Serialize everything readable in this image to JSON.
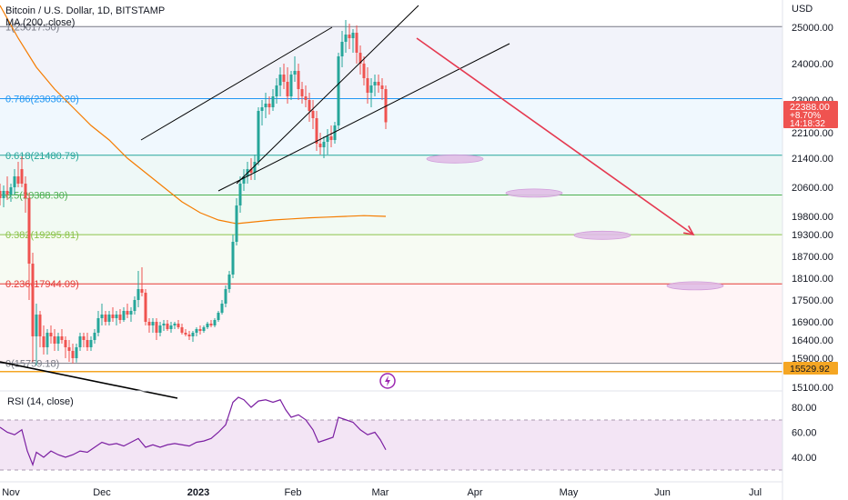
{
  "header": {
    "symbol": "Bitcoin / U.S. Dollar, 1D, BITSTAMP",
    "ma": "MA (200, close)"
  },
  "rsi_label": "RSI (14, close)",
  "colors": {
    "up": "#26a69a",
    "down": "#ef5350",
    "ma": "#f57c00",
    "rsi": "#7b1fa2",
    "channel": "#000000",
    "arrow": "#e53950",
    "support": "#f5a623",
    "live_badge": "#ef5350",
    "support_badge": "#f5a623"
  },
  "price_axis": {
    "currency": "USD",
    "ticks": [
      "25000.00",
      "24000.00",
      "23000.00",
      "22100.00",
      "21400.00",
      "20600.00",
      "19800.00",
      "19300.00",
      "18700.00",
      "18100.00",
      "17500.00",
      "16900.00",
      "16400.00",
      "15900.00",
      "15100.00"
    ],
    "live_price": "22388.00",
    "live_change": "+8.70%",
    "live_countdown": "14:18:32",
    "support_price": "15529.92"
  },
  "rsi_axis": {
    "ticks": [
      "80.00",
      "60.00",
      "40.00"
    ]
  },
  "time_axis": {
    "ticks": [
      "Nov",
      "Dec",
      "2023",
      "Feb",
      "Mar",
      "Apr",
      "May",
      "Jun",
      "Jul"
    ]
  },
  "fib_levels": [
    {
      "label": "1(25017.50)",
      "color": "#787b86"
    },
    {
      "label": "0.786(23036.20)",
      "color": "#2196f3"
    },
    {
      "label": "0.618(21480.79)",
      "color": "#26a69a"
    },
    {
      "label": "0.5(20388.30)",
      "color": "#4caf50"
    },
    {
      "label": "0.382(19295.81)",
      "color": "#8bc34a"
    },
    {
      "label": "0.236(17944.09)",
      "color": "#e53935"
    },
    {
      "label": "0(15759.18)",
      "color": "#787b86"
    }
  ],
  "chart_data": {
    "type": "candlestick",
    "title": "Bitcoin / U.S. Dollar, 1D, BITSTAMP",
    "y_unit": "USD",
    "ylim": [
      15000,
      25600
    ],
    "candles": [
      {
        "t": 0,
        "o": 20500,
        "h": 20700,
        "l": 20100,
        "c": 20300
      },
      {
        "t": 4,
        "o": 20300,
        "h": 20650,
        "l": 20050,
        "c": 20500
      },
      {
        "t": 8,
        "o": 20500,
        "h": 20900,
        "l": 20250,
        "c": 20400
      },
      {
        "t": 12,
        "o": 20400,
        "h": 20700,
        "l": 20200,
        "c": 20600
      },
      {
        "t": 16,
        "o": 20600,
        "h": 21100,
        "l": 20400,
        "c": 20900
      },
      {
        "t": 20,
        "o": 20900,
        "h": 21300,
        "l": 20600,
        "c": 20700
      },
      {
        "t": 24,
        "o": 21100,
        "h": 21450,
        "l": 20600,
        "c": 20700
      },
      {
        "t": 28,
        "o": 20700,
        "h": 20900,
        "l": 19900,
        "c": 20300
      },
      {
        "t": 32,
        "o": 20300,
        "h": 20450,
        "l": 17500,
        "c": 18500
      },
      {
        "t": 36,
        "o": 18500,
        "h": 18800,
        "l": 15800,
        "c": 16500
      },
      {
        "t": 40,
        "o": 16500,
        "h": 17400,
        "l": 15700,
        "c": 17100
      },
      {
        "t": 44,
        "o": 17100,
        "h": 17200,
        "l": 16200,
        "c": 16500
      },
      {
        "t": 48,
        "o": 16500,
        "h": 16800,
        "l": 16000,
        "c": 16200
      },
      {
        "t": 52,
        "o": 16200,
        "h": 16700,
        "l": 16000,
        "c": 16600
      },
      {
        "t": 56,
        "o": 16600,
        "h": 16800,
        "l": 16300,
        "c": 16500
      },
      {
        "t": 60,
        "o": 16500,
        "h": 16700,
        "l": 16100,
        "c": 16300
      },
      {
        "t": 64,
        "o": 16300,
        "h": 16600,
        "l": 16100,
        "c": 16500
      },
      {
        "t": 68,
        "o": 16500,
        "h": 16700,
        "l": 16300,
        "c": 16400
      },
      {
        "t": 72,
        "o": 16400,
        "h": 16500,
        "l": 15900,
        "c": 16200
      },
      {
        "t": 76,
        "o": 16200,
        "h": 16400,
        "l": 15800,
        "c": 16100
      },
      {
        "t": 80,
        "o": 16100,
        "h": 16300,
        "l": 15750,
        "c": 15900
      },
      {
        "t": 84,
        "o": 15900,
        "h": 16300,
        "l": 15780,
        "c": 16200
      },
      {
        "t": 88,
        "o": 16200,
        "h": 16600,
        "l": 16100,
        "c": 16500
      },
      {
        "t": 92,
        "o": 16500,
        "h": 16600,
        "l": 16200,
        "c": 16400
      },
      {
        "t": 96,
        "o": 16400,
        "h": 16600,
        "l": 16100,
        "c": 16200
      },
      {
        "t": 100,
        "o": 16200,
        "h": 16500,
        "l": 16100,
        "c": 16400
      },
      {
        "t": 104,
        "o": 16400,
        "h": 16700,
        "l": 16300,
        "c": 16600
      },
      {
        "t": 108,
        "o": 16600,
        "h": 17200,
        "l": 16500,
        "c": 17000
      },
      {
        "t": 112,
        "o": 17000,
        "h": 17400,
        "l": 16800,
        "c": 17100
      },
      {
        "t": 116,
        "o": 17100,
        "h": 17200,
        "l": 16800,
        "c": 16900
      },
      {
        "t": 120,
        "o": 16900,
        "h": 17200,
        "l": 16800,
        "c": 17100
      },
      {
        "t": 124,
        "o": 17100,
        "h": 17300,
        "l": 16900,
        "c": 17000
      },
      {
        "t": 128,
        "o": 17000,
        "h": 17200,
        "l": 16800,
        "c": 17100
      },
      {
        "t": 132,
        "o": 17100,
        "h": 17250,
        "l": 16850,
        "c": 16950
      },
      {
        "t": 136,
        "o": 16950,
        "h": 17300,
        "l": 16900,
        "c": 17200
      },
      {
        "t": 140,
        "o": 17200,
        "h": 17400,
        "l": 17000,
        "c": 17100
      },
      {
        "t": 144,
        "o": 17100,
        "h": 17300,
        "l": 16900,
        "c": 17200
      },
      {
        "t": 148,
        "o": 17200,
        "h": 17600,
        "l": 17100,
        "c": 17500
      },
      {
        "t": 152,
        "o": 17500,
        "h": 18300,
        "l": 17300,
        "c": 17800
      },
      {
        "t": 156,
        "o": 17800,
        "h": 18400,
        "l": 17600,
        "c": 17700
      },
      {
        "t": 160,
        "o": 17700,
        "h": 17800,
        "l": 16800,
        "c": 16900
      },
      {
        "t": 164,
        "o": 16900,
        "h": 17000,
        "l": 16600,
        "c": 16800
      },
      {
        "t": 168,
        "o": 16800,
        "h": 17000,
        "l": 16600,
        "c": 16900
      },
      {
        "t": 172,
        "o": 16900,
        "h": 17000,
        "l": 16400,
        "c": 16600
      },
      {
        "t": 176,
        "o": 16600,
        "h": 16900,
        "l": 16500,
        "c": 16800
      },
      {
        "t": 180,
        "o": 16800,
        "h": 16950,
        "l": 16650,
        "c": 16850
      },
      {
        "t": 184,
        "o": 16850,
        "h": 16950,
        "l": 16650,
        "c": 16700
      },
      {
        "t": 188,
        "o": 16700,
        "h": 16900,
        "l": 16600,
        "c": 16800
      },
      {
        "t": 192,
        "o": 16800,
        "h": 16900,
        "l": 16700,
        "c": 16850
      },
      {
        "t": 196,
        "o": 16850,
        "h": 16950,
        "l": 16700,
        "c": 16750
      },
      {
        "t": 200,
        "o": 16750,
        "h": 16850,
        "l": 16550,
        "c": 16600
      },
      {
        "t": 204,
        "o": 16600,
        "h": 16700,
        "l": 16500,
        "c": 16550
      },
      {
        "t": 208,
        "o": 16550,
        "h": 16650,
        "l": 16400,
        "c": 16500
      },
      {
        "t": 212,
        "o": 16500,
        "h": 16650,
        "l": 16350,
        "c": 16600
      },
      {
        "t": 216,
        "o": 16600,
        "h": 16750,
        "l": 16500,
        "c": 16700
      },
      {
        "t": 220,
        "o": 16700,
        "h": 16800,
        "l": 16550,
        "c": 16650
      },
      {
        "t": 224,
        "o": 16650,
        "h": 16800,
        "l": 16600,
        "c": 16750
      },
      {
        "t": 228,
        "o": 16750,
        "h": 16900,
        "l": 16700,
        "c": 16850
      },
      {
        "t": 232,
        "o": 16850,
        "h": 16950,
        "l": 16750,
        "c": 16800
      },
      {
        "t": 236,
        "o": 16800,
        "h": 17000,
        "l": 16750,
        "c": 16950
      },
      {
        "t": 240,
        "o": 16950,
        "h": 17200,
        "l": 16900,
        "c": 17150
      },
      {
        "t": 244,
        "o": 17150,
        "h": 17500,
        "l": 17100,
        "c": 17400
      },
      {
        "t": 248,
        "o": 17400,
        "h": 17900,
        "l": 17300,
        "c": 17800
      },
      {
        "t": 252,
        "o": 17800,
        "h": 18300,
        "l": 17700,
        "c": 18200
      },
      {
        "t": 256,
        "o": 18200,
        "h": 19300,
        "l": 18100,
        "c": 19100
      },
      {
        "t": 260,
        "o": 19100,
        "h": 20300,
        "l": 19000,
        "c": 20100
      },
      {
        "t": 264,
        "o": 20100,
        "h": 20900,
        "l": 19900,
        "c": 20700
      },
      {
        "t": 268,
        "o": 20700,
        "h": 21100,
        "l": 20500,
        "c": 20900
      },
      {
        "t": 272,
        "o": 20900,
        "h": 21300,
        "l": 20700,
        "c": 21100
      },
      {
        "t": 276,
        "o": 21100,
        "h": 21400,
        "l": 20800,
        "c": 21000
      },
      {
        "t": 280,
        "o": 21000,
        "h": 21500,
        "l": 20800,
        "c": 21300
      },
      {
        "t": 284,
        "o": 21300,
        "h": 22800,
        "l": 21200,
        "c": 22700
      },
      {
        "t": 288,
        "o": 22700,
        "h": 23000,
        "l": 22300,
        "c": 22800
      },
      {
        "t": 292,
        "o": 22800,
        "h": 23200,
        "l": 22500,
        "c": 22900
      },
      {
        "t": 296,
        "o": 22900,
        "h": 23100,
        "l": 22600,
        "c": 22800
      },
      {
        "t": 300,
        "o": 22800,
        "h": 23300,
        "l": 22700,
        "c": 23100
      },
      {
        "t": 304,
        "o": 23100,
        "h": 23600,
        "l": 22900,
        "c": 23400
      },
      {
        "t": 308,
        "o": 23400,
        "h": 23900,
        "l": 23100,
        "c": 23700
      },
      {
        "t": 312,
        "o": 23700,
        "h": 24000,
        "l": 23300,
        "c": 23500
      },
      {
        "t": 316,
        "o": 23500,
        "h": 23900,
        "l": 22900,
        "c": 23100
      },
      {
        "t": 320,
        "o": 23100,
        "h": 23800,
        "l": 23000,
        "c": 23700
      },
      {
        "t": 324,
        "o": 23700,
        "h": 24200,
        "l": 23500,
        "c": 23800
      },
      {
        "t": 328,
        "o": 23800,
        "h": 24000,
        "l": 23000,
        "c": 23300
      },
      {
        "t": 332,
        "o": 23300,
        "h": 23500,
        "l": 22900,
        "c": 23100
      },
      {
        "t": 336,
        "o": 23100,
        "h": 23400,
        "l": 22800,
        "c": 23000
      },
      {
        "t": 340,
        "o": 23000,
        "h": 23200,
        "l": 22400,
        "c": 22700
      },
      {
        "t": 344,
        "o": 22700,
        "h": 23000,
        "l": 22200,
        "c": 22500
      },
      {
        "t": 348,
        "o": 22500,
        "h": 22700,
        "l": 21600,
        "c": 21800
      },
      {
        "t": 352,
        "o": 21800,
        "h": 22100,
        "l": 21500,
        "c": 21700
      },
      {
        "t": 356,
        "o": 21700,
        "h": 22000,
        "l": 21400,
        "c": 21850
      },
      {
        "t": 360,
        "o": 21850,
        "h": 22200,
        "l": 21500,
        "c": 22000
      },
      {
        "t": 364,
        "o": 22000,
        "h": 22300,
        "l": 21700,
        "c": 21900
      },
      {
        "t": 368,
        "o": 21900,
        "h": 22400,
        "l": 21800,
        "c": 22300
      },
      {
        "t": 372,
        "o": 22300,
        "h": 24300,
        "l": 22200,
        "c": 24200
      },
      {
        "t": 376,
        "o": 24200,
        "h": 24900,
        "l": 23900,
        "c": 24600
      },
      {
        "t": 380,
        "o": 24600,
        "h": 25200,
        "l": 24300,
        "c": 24800
      },
      {
        "t": 384,
        "o": 24800,
        "h": 25100,
        "l": 24400,
        "c": 24700
      },
      {
        "t": 388,
        "o": 24700,
        "h": 24950,
        "l": 24300,
        "c": 24850
      },
      {
        "t": 392,
        "o": 24850,
        "h": 25050,
        "l": 24000,
        "c": 24300
      },
      {
        "t": 396,
        "o": 24300,
        "h": 24500,
        "l": 23700,
        "c": 24000
      },
      {
        "t": 400,
        "o": 24000,
        "h": 24200,
        "l": 23400,
        "c": 23600
      },
      {
        "t": 404,
        "o": 23600,
        "h": 23900,
        "l": 22900,
        "c": 23200
      },
      {
        "t": 408,
        "o": 23200,
        "h": 23600,
        "l": 22800,
        "c": 23400
      },
      {
        "t": 412,
        "o": 23400,
        "h": 23700,
        "l": 23100,
        "c": 23500
      },
      {
        "t": 416,
        "o": 23500,
        "h": 23700,
        "l": 23200,
        "c": 23400
      },
      {
        "t": 420,
        "o": 23400,
        "h": 23600,
        "l": 23000,
        "c": 23300
      },
      {
        "t": 424,
        "o": 23300,
        "h": 23400,
        "l": 22200,
        "c": 22388
      }
    ],
    "ma200": [
      {
        "t": 0,
        "v": 25600
      },
      {
        "t": 20,
        "v": 24700
      },
      {
        "t": 40,
        "v": 23900
      },
      {
        "t": 60,
        "v": 23300
      },
      {
        "t": 80,
        "v": 22800
      },
      {
        "t": 100,
        "v": 22300
      },
      {
        "t": 120,
        "v": 21900
      },
      {
        "t": 140,
        "v": 21400
      },
      {
        "t": 160,
        "v": 21000
      },
      {
        "t": 180,
        "v": 20600
      },
      {
        "t": 200,
        "v": 20200
      },
      {
        "t": 220,
        "v": 19900
      },
      {
        "t": 240,
        "v": 19700
      },
      {
        "t": 260,
        "v": 19600
      },
      {
        "t": 280,
        "v": 19650
      },
      {
        "t": 300,
        "v": 19700
      },
      {
        "t": 320,
        "v": 19730
      },
      {
        "t": 340,
        "v": 19760
      },
      {
        "t": 360,
        "v": 19780
      },
      {
        "t": 380,
        "v": 19800
      },
      {
        "t": 400,
        "v": 19820
      },
      {
        "t": 424,
        "v": 19800
      }
    ],
    "rsi": {
      "name": "RSI (14, close)",
      "ylim": [
        30,
        95
      ],
      "points": [
        {
          "t": 0,
          "v": 64
        },
        {
          "t": 8,
          "v": 60
        },
        {
          "t": 16,
          "v": 58
        },
        {
          "t": 24,
          "v": 62
        },
        {
          "t": 30,
          "v": 45
        },
        {
          "t": 36,
          "v": 34
        },
        {
          "t": 40,
          "v": 44
        },
        {
          "t": 48,
          "v": 40
        },
        {
          "t": 56,
          "v": 45
        },
        {
          "t": 64,
          "v": 42
        },
        {
          "t": 72,
          "v": 40
        },
        {
          "t": 80,
          "v": 42
        },
        {
          "t": 88,
          "v": 45
        },
        {
          "t": 96,
          "v": 44
        },
        {
          "t": 104,
          "v": 48
        },
        {
          "t": 112,
          "v": 52
        },
        {
          "t": 120,
          "v": 50
        },
        {
          "t": 128,
          "v": 51
        },
        {
          "t": 136,
          "v": 49
        },
        {
          "t": 144,
          "v": 52
        },
        {
          "t": 152,
          "v": 55
        },
        {
          "t": 160,
          "v": 48
        },
        {
          "t": 168,
          "v": 50
        },
        {
          "t": 176,
          "v": 48
        },
        {
          "t": 184,
          "v": 50
        },
        {
          "t": 192,
          "v": 51
        },
        {
          "t": 200,
          "v": 50
        },
        {
          "t": 208,
          "v": 49
        },
        {
          "t": 216,
          "v": 52
        },
        {
          "t": 224,
          "v": 53
        },
        {
          "t": 232,
          "v": 55
        },
        {
          "t": 240,
          "v": 60
        },
        {
          "t": 248,
          "v": 66
        },
        {
          "t": 256,
          "v": 84
        },
        {
          "t": 262,
          "v": 88
        },
        {
          "t": 268,
          "v": 86
        },
        {
          "t": 276,
          "v": 80
        },
        {
          "t": 284,
          "v": 85
        },
        {
          "t": 292,
          "v": 86
        },
        {
          "t": 300,
          "v": 84
        },
        {
          "t": 308,
          "v": 86
        },
        {
          "t": 314,
          "v": 78
        },
        {
          "t": 320,
          "v": 72
        },
        {
          "t": 328,
          "v": 74
        },
        {
          "t": 336,
          "v": 70
        },
        {
          "t": 344,
          "v": 62
        },
        {
          "t": 350,
          "v": 52
        },
        {
          "t": 358,
          "v": 54
        },
        {
          "t": 366,
          "v": 56
        },
        {
          "t": 372,
          "v": 72
        },
        {
          "t": 380,
          "v": 70
        },
        {
          "t": 388,
          "v": 68
        },
        {
          "t": 396,
          "v": 62
        },
        {
          "t": 404,
          "v": 58
        },
        {
          "t": 412,
          "v": 60
        },
        {
          "t": 418,
          "v": 54
        },
        {
          "t": 424,
          "v": 46
        }
      ]
    },
    "channel_upper": [
      {
        "t": 260,
        "v": 20700
      },
      {
        "t": 460,
        "v": 25600
      }
    ],
    "channel_lower": [
      {
        "t": 240,
        "v": 20500
      },
      {
        "t": 560,
        "v": 24550
      }
    ],
    "channel_mid": [
      {
        "t": 155,
        "v": 21900
      },
      {
        "t": 365,
        "v": 25000
      }
    ],
    "downtrend_line": [
      {
        "t": 0,
        "v": 15800
      },
      {
        "t": 195,
        "v": 14800
      }
    ],
    "projection_arrow": [
      {
        "t": 458,
        "v": 24700
      },
      {
        "t": 762,
        "v": 19300
      }
    ],
    "target_zones": [
      {
        "t": 500,
        "v": 21380
      },
      {
        "t": 587,
        "v": 20440
      },
      {
        "t": 662,
        "v": 19280
      },
      {
        "t": 764,
        "v": 17890
      }
    ]
  }
}
